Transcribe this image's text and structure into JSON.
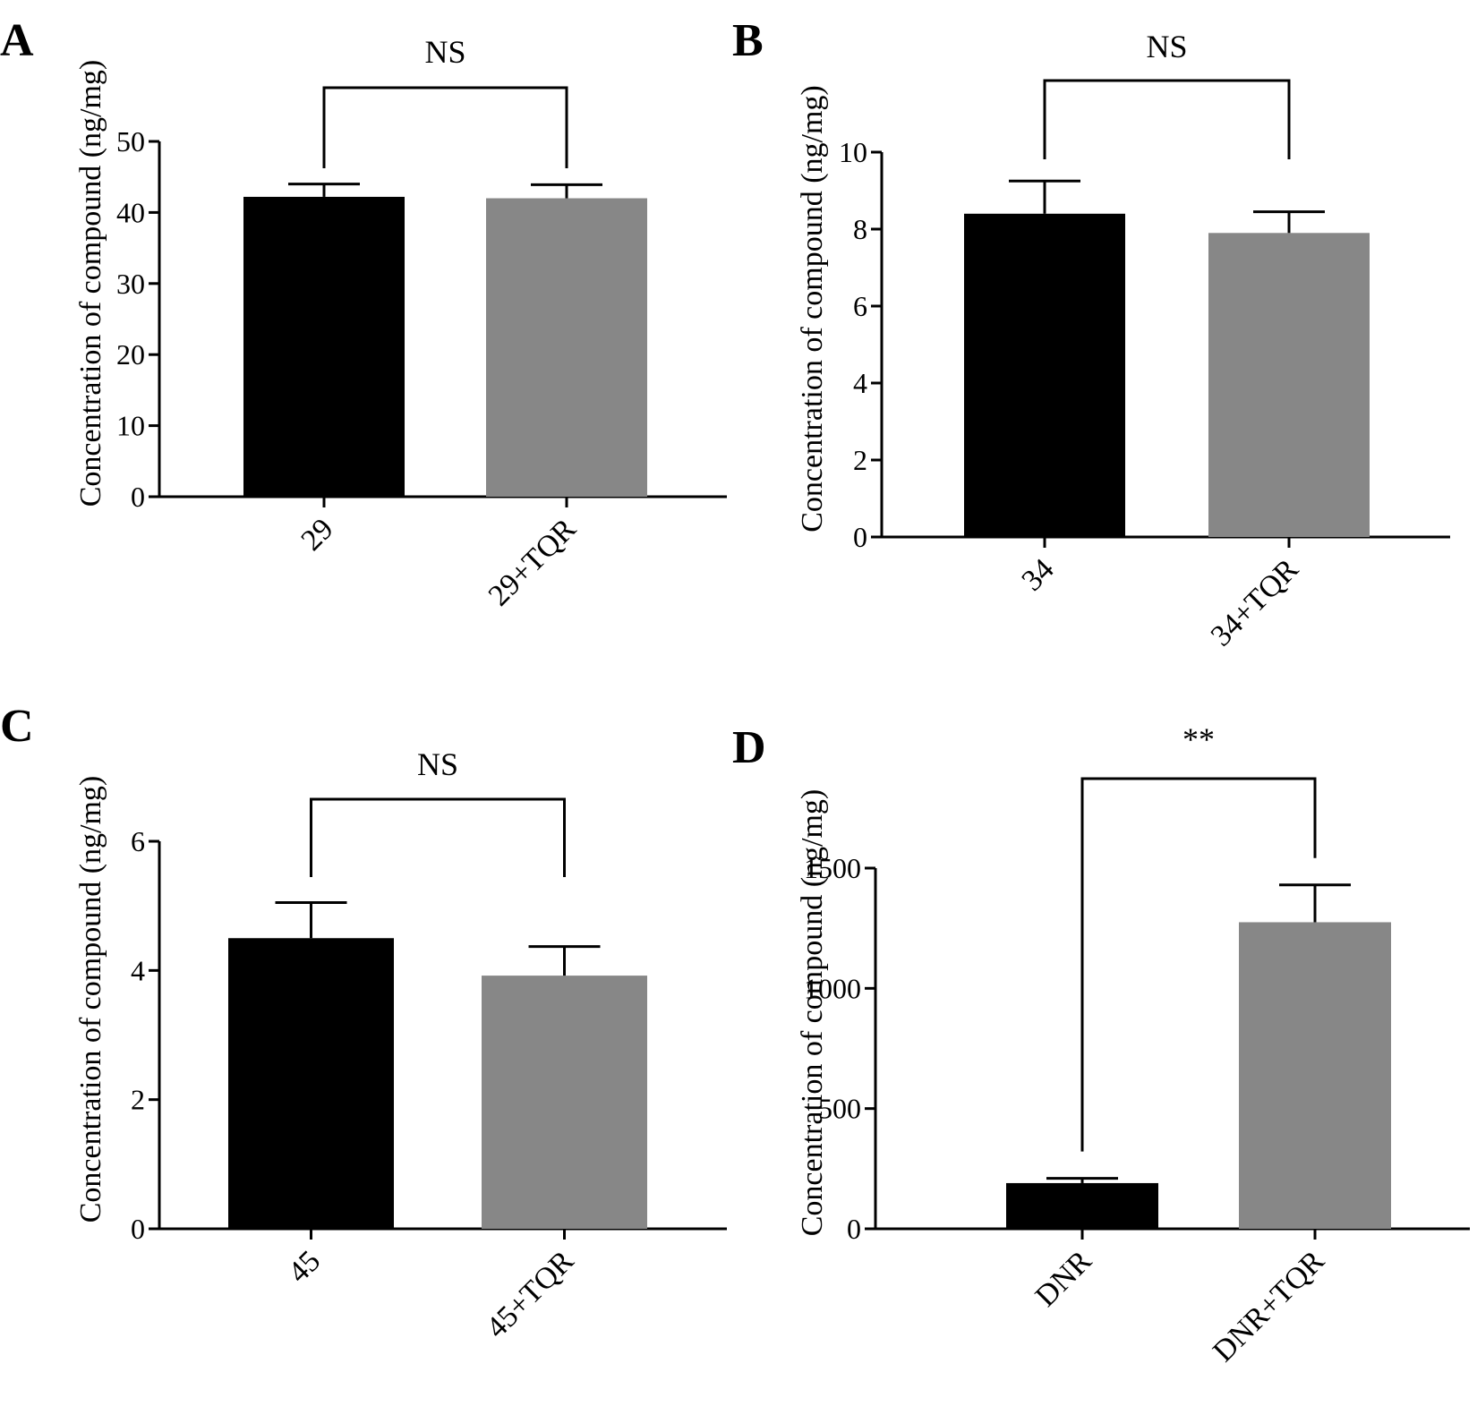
{
  "chart_data": [
    {
      "type": "bar",
      "panel": "A",
      "categories": [
        "29",
        "29+TQR"
      ],
      "values": [
        42.2,
        42.0
      ],
      "errors": [
        1.8,
        1.9
      ],
      "bar_colors": [
        "#000000",
        "#878787"
      ],
      "ylabel": "Concentration of compound (ng/mg)",
      "xlabel": "",
      "ylim": [
        0,
        50
      ],
      "yticks": [
        0,
        10,
        20,
        30,
        40,
        50
      ],
      "significance": "NS"
    },
    {
      "type": "bar",
      "panel": "B",
      "categories": [
        "34",
        "34+TQR"
      ],
      "values": [
        8.4,
        7.9
      ],
      "errors": [
        0.85,
        0.55
      ],
      "bar_colors": [
        "#000000",
        "#878787"
      ],
      "ylabel": "Concentration of compound (ng/mg)",
      "xlabel": "",
      "ylim": [
        0,
        10
      ],
      "yticks": [
        0,
        2,
        4,
        6,
        8,
        10
      ],
      "significance": "NS"
    },
    {
      "type": "bar",
      "panel": "C",
      "categories": [
        "45",
        "45+TQR"
      ],
      "values": [
        4.5,
        3.92
      ],
      "errors": [
        0.55,
        0.45
      ],
      "bar_colors": [
        "#000000",
        "#878787"
      ],
      "ylabel": "Concentration of compound (ng/mg)",
      "xlabel": "",
      "ylim": [
        0,
        6
      ],
      "yticks": [
        0,
        2,
        4,
        6
      ],
      "significance": "NS"
    },
    {
      "type": "bar",
      "panel": "D",
      "categories": [
        "DNR",
        "DNR+TQR"
      ],
      "values": [
        190,
        1275
      ],
      "errors": [
        20,
        155
      ],
      "bar_colors": [
        "#000000",
        "#878787"
      ],
      "ylabel": "Concentration of compound (ng/mg)",
      "xlabel": "",
      "ylim": [
        0,
        1500
      ],
      "yticks": [
        0,
        500,
        1000,
        1500
      ],
      "significance": "**"
    }
  ]
}
